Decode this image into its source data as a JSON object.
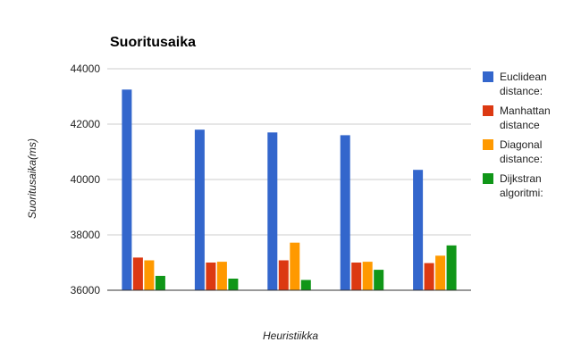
{
  "chart_data": {
    "type": "bar",
    "title": "Suoritusaika",
    "xlabel": "Heuristiikka",
    "ylabel": "Suoritusaika(ms)",
    "ylim": [
      36000,
      44000
    ],
    "yticks": [
      36000,
      38000,
      40000,
      42000,
      44000
    ],
    "grid": true,
    "legend_position": "right",
    "categories": [
      "",
      "",
      "",
      "",
      ""
    ],
    "series": [
      {
        "name": "Euclidean distance:",
        "legend_lines": [
          "Euclidean",
          "distance:"
        ],
        "color": "#3366cc",
        "values": [
          43250,
          41800,
          41700,
          41600,
          40350
        ]
      },
      {
        "name": "Manhattan distance",
        "legend_lines": [
          "Manhattan",
          "distance"
        ],
        "color": "#dc3912",
        "values": [
          37180,
          37000,
          37080,
          37000,
          36980
        ]
      },
      {
        "name": "Diagonal distance:",
        "legend_lines": [
          "Diagonal",
          "distance:"
        ],
        "color": "#ff9900",
        "values": [
          37080,
          37030,
          37720,
          37030,
          37250
        ]
      },
      {
        "name": "Dijkstran algoritmi:",
        "legend_lines": [
          "Dijkstran",
          "algoritmi:"
        ],
        "color": "#109618",
        "values": [
          36520,
          36420,
          36370,
          36740,
          37620
        ]
      }
    ]
  }
}
